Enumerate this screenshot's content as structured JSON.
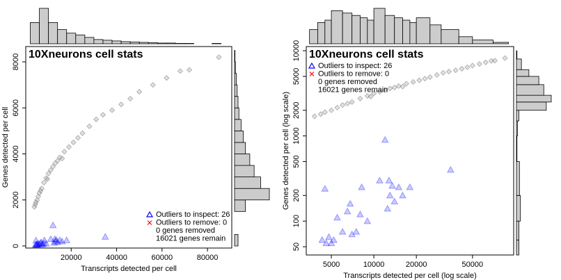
{
  "chart_data": [
    {
      "type": "scatter",
      "title": "10Xneurons cell stats",
      "x_label": "Transcripts detected per cell",
      "y_label": "Genes detected per cell",
      "xlim": [
        0,
        90700
      ],
      "ylim": [
        -90,
        8665
      ],
      "xticks": [
        20000,
        40000,
        60000,
        80000
      ],
      "yticks": [
        0,
        2000,
        4000,
        6000,
        8000
      ],
      "xlog": false,
      "ylog": false,
      "legend": "lower right",
      "series": [
        {
          "color": "#888888",
          "marker": "diamond",
          "x": [
            3800,
            4200,
            4500,
            5000,
            5500,
            6000,
            6500,
            7000,
            8000,
            9000,
            10000,
            11000,
            12000,
            13000,
            14000,
            15000,
            17000,
            19000,
            21000,
            23000,
            25000,
            28000,
            31000,
            34000,
            38000,
            42000,
            46000,
            50000,
            56000,
            62000,
            68000,
            72000,
            85000,
            9500,
            16000
          ],
          "values": [
            1700,
            1800,
            1900,
            2000,
            2150,
            2300,
            2400,
            2500,
            2750,
            2950,
            3150,
            3300,
            3450,
            3600,
            3700,
            3850,
            4100,
            4300,
            4500,
            4700,
            4900,
            5200,
            5500,
            5700,
            5900,
            6150,
            6400,
            6700,
            7000,
            7300,
            7600,
            7650,
            8200,
            2900,
            3800
          ]
        },
        {
          "name": "Outliers to inspect: 26",
          "color": "#0000ff",
          "marker": "triangle",
          "x": [
            4500,
            5000,
            4300,
            4800,
            6000,
            6500,
            6800,
            7000,
            8000,
            8200,
            12000,
            12500,
            13000,
            12800,
            15000,
            14000,
            18000,
            35000,
            5500,
            4600,
            9000,
            11000,
            7500,
            13500,
            16000,
            5200
          ],
          "values": [
            240,
            55,
            60,
            65,
            75,
            130,
            160,
            70,
            120,
            250,
            900,
            140,
            200,
            300,
            250,
            170,
            250,
            400,
            110,
            55,
            100,
            300,
            75,
            260,
            200,
            60
          ]
        },
        {
          "name": "Outliers to remove: 0",
          "color": "#ff0000",
          "marker": "x",
          "x": [],
          "values": []
        }
      ],
      "legend_notes": [
        "0 genes removed",
        "16021 genes remain"
      ],
      "hist_color": "#cccccc",
      "x_hist": {
        "bins": [
          2000,
          6000,
          10000,
          14000,
          18000,
          22000,
          26000,
          30000,
          34000,
          38000,
          42000,
          46000,
          50000,
          54000,
          58000,
          62000,
          66000,
          70000,
          74000,
          78000,
          82000,
          86000
        ],
        "counts": [
          60,
          100,
          60,
          40,
          30,
          25,
          18,
          12,
          10,
          8,
          6,
          5,
          4,
          3,
          2,
          2,
          1,
          1,
          0,
          0,
          1
        ]
      },
      "y_hist": {
        "bins": [
          0,
          500,
          1000,
          1500,
          2000,
          2500,
          3000,
          3500,
          4000,
          4500,
          5000,
          5500,
          6000,
          6500,
          7000,
          7500,
          8000,
          8500
        ],
        "counts": [
          8,
          0,
          0,
          25,
          80,
          60,
          45,
          35,
          25,
          20,
          15,
          10,
          8,
          6,
          4,
          2,
          1
        ]
      }
    },
    {
      "type": "scatter",
      "title": "10Xneurons cell stats",
      "x_label": "Transcripts detected per cell (log scale)",
      "y_label": "Genes detected per cell (log scale)",
      "xlim": [
        3319,
        97900
      ],
      "ylim": [
        40,
        11200
      ],
      "xticks": [
        5000,
        10000,
        20000,
        50000
      ],
      "yticks": [
        50,
        100,
        200,
        500,
        1000,
        2000,
        5000,
        10000
      ],
      "xlog": true,
      "ylog": true,
      "legend": "upper left",
      "series": [
        {
          "color": "#888888",
          "marker": "diamond",
          "x": [
            3800,
            4200,
            4500,
            5000,
            5500,
            6000,
            6500,
            7000,
            8000,
            9000,
            10000,
            11000,
            12000,
            13000,
            14000,
            15000,
            17000,
            19000,
            21000,
            23000,
            25000,
            28000,
            31000,
            34000,
            38000,
            42000,
            46000,
            50000,
            56000,
            62000,
            68000,
            72000,
            85000,
            9500,
            16000
          ],
          "values": [
            1700,
            1800,
            1900,
            2000,
            2150,
            2300,
            2400,
            2500,
            2750,
            2950,
            3150,
            3300,
            3450,
            3600,
            3700,
            3850,
            4100,
            4300,
            4500,
            4700,
            4900,
            5200,
            5500,
            5700,
            5900,
            6150,
            6400,
            6700,
            7000,
            7300,
            7600,
            7650,
            8200,
            2900,
            3800
          ]
        },
        {
          "name": "Outliers to inspect: 26",
          "color": "#0000ff",
          "marker": "triangle",
          "x": [
            4500,
            5000,
            4300,
            4800,
            6000,
            6500,
            6800,
            7000,
            8000,
            8200,
            12000,
            12500,
            13000,
            12800,
            15000,
            14000,
            18000,
            35000,
            5500,
            4600,
            9000,
            11000,
            7500,
            13500,
            16000,
            5200
          ],
          "values": [
            240,
            55,
            60,
            65,
            75,
            130,
            160,
            70,
            120,
            250,
            900,
            140,
            200,
            300,
            250,
            170,
            250,
            400,
            110,
            55,
            100,
            300,
            75,
            260,
            200,
            60
          ]
        },
        {
          "name": "Outliers to remove: 0",
          "color": "#ff0000",
          "marker": "x",
          "x": [],
          "values": []
        }
      ],
      "legend_notes": [
        "0 genes removed",
        "16021 genes remain"
      ],
      "hist_color": "#cccccc",
      "x_hist": {
        "bins": [
          3500,
          4000,
          4500,
          5000,
          6000,
          7000,
          8000,
          9000,
          10000,
          12000,
          14000,
          16000,
          18000,
          20000,
          25000,
          30000,
          40000,
          50000,
          70000,
          90000
        ],
        "counts": [
          30,
          45,
          50,
          70,
          65,
          60,
          55,
          50,
          75,
          60,
          55,
          50,
          45,
          55,
          40,
          30,
          15,
          8,
          3
        ]
      },
      "y_hist": {
        "bins": [
          40,
          60,
          100,
          200,
          500,
          1000,
          1500,
          2000,
          2500,
          3000,
          4000,
          5000,
          6000,
          8000,
          10000
        ],
        "counts": [
          5,
          5,
          8,
          6,
          1,
          2,
          5,
          60,
          70,
          55,
          45,
          25,
          10,
          1
        ]
      }
    }
  ]
}
